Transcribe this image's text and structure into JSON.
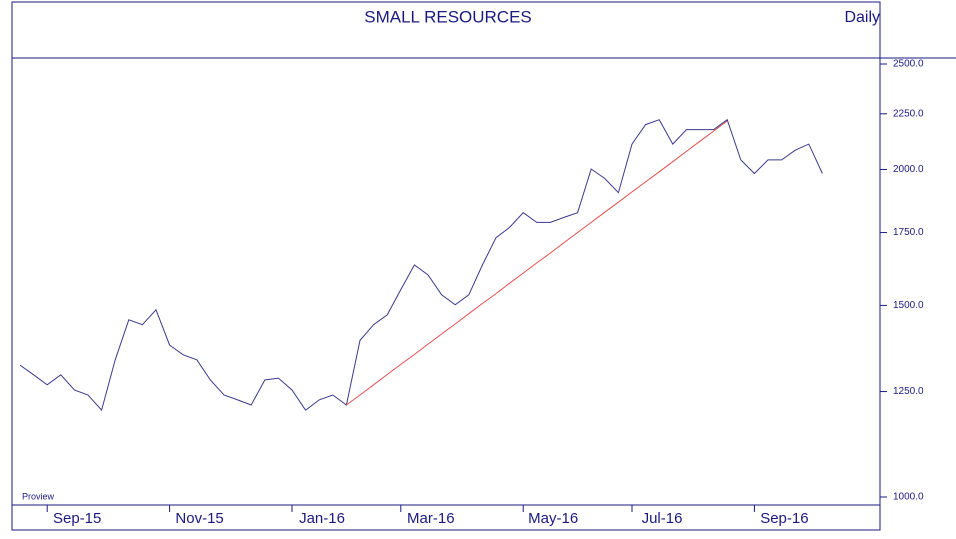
{
  "chart_data": {
    "type": "line",
    "title": "SMALL RESOURCES",
    "subtitle": "Daily",
    "annotation": "Proview",
    "log_scale": true,
    "ylim": [
      1000,
      2500
    ],
    "yticks": [
      {
        "value": 1000,
        "label": "1000.0"
      },
      {
        "value": 1250,
        "label": "1250.0"
      },
      {
        "value": 1500,
        "label": "1500.0"
      },
      {
        "value": 1750,
        "label": "1750.0"
      },
      {
        "value": 2000,
        "label": "2000.0"
      },
      {
        "value": 2250,
        "label": "2250.0"
      },
      {
        "value": 2500,
        "label": "2500.0"
      }
    ],
    "categories": [
      null,
      null,
      "Sep-15",
      null,
      null,
      null,
      null,
      null,
      null,
      null,
      null,
      "Nov-15",
      null,
      null,
      null,
      null,
      null,
      null,
      null,
      null,
      "Jan-16",
      null,
      null,
      null,
      null,
      null,
      null,
      null,
      "Mar-16",
      null,
      null,
      null,
      null,
      null,
      null,
      null,
      null,
      "May-16",
      null,
      null,
      null,
      null,
      null,
      null,
      null,
      "Jul-16",
      null,
      null,
      null,
      null,
      null,
      null,
      null,
      null,
      "Sep-16",
      null,
      null,
      null,
      null,
      null
    ],
    "series": [
      {
        "color": "#3a3a8c",
        "values": [
          1322,
          1295,
          1268,
          1295,
          1254,
          1241,
          1202,
          1337,
          1455,
          1440,
          1486,
          1379,
          1351,
          1337,
          1281,
          1241,
          1228,
          1215,
          1281,
          1286,
          1254,
          1202,
          1228,
          1241,
          1215,
          1393,
          1440,
          1470,
          1551,
          1634,
          1600,
          1534,
          1502,
          1534,
          1634,
          1731,
          1769,
          1825,
          1788,
          1788,
          1807,
          1825,
          2002,
          1962,
          1904,
          2110,
          2199,
          2222,
          2110,
          2176,
          2176,
          2176,
          2222,
          2041,
          1983,
          2041,
          2041,
          2083,
          2110,
          1983
        ]
      },
      {
        "color": "#e05050",
        "values": [
          null,
          null,
          null,
          null,
          null,
          null,
          null,
          null,
          null,
          null,
          null,
          null,
          null,
          null,
          null,
          null,
          null,
          null,
          null,
          null,
          null,
          null,
          null,
          null,
          1215,
          1241,
          1268,
          1296,
          1324,
          1352,
          1382,
          1412,
          1442,
          1474,
          1506,
          1538,
          1572,
          1606,
          1641,
          1676,
          1713,
          1750,
          1788,
          1827,
          1866,
          1907,
          1948,
          1990,
          2033,
          2078,
          2123,
          2169,
          2216,
          null,
          null,
          null,
          null,
          null,
          null,
          null
        ]
      }
    ]
  }
}
